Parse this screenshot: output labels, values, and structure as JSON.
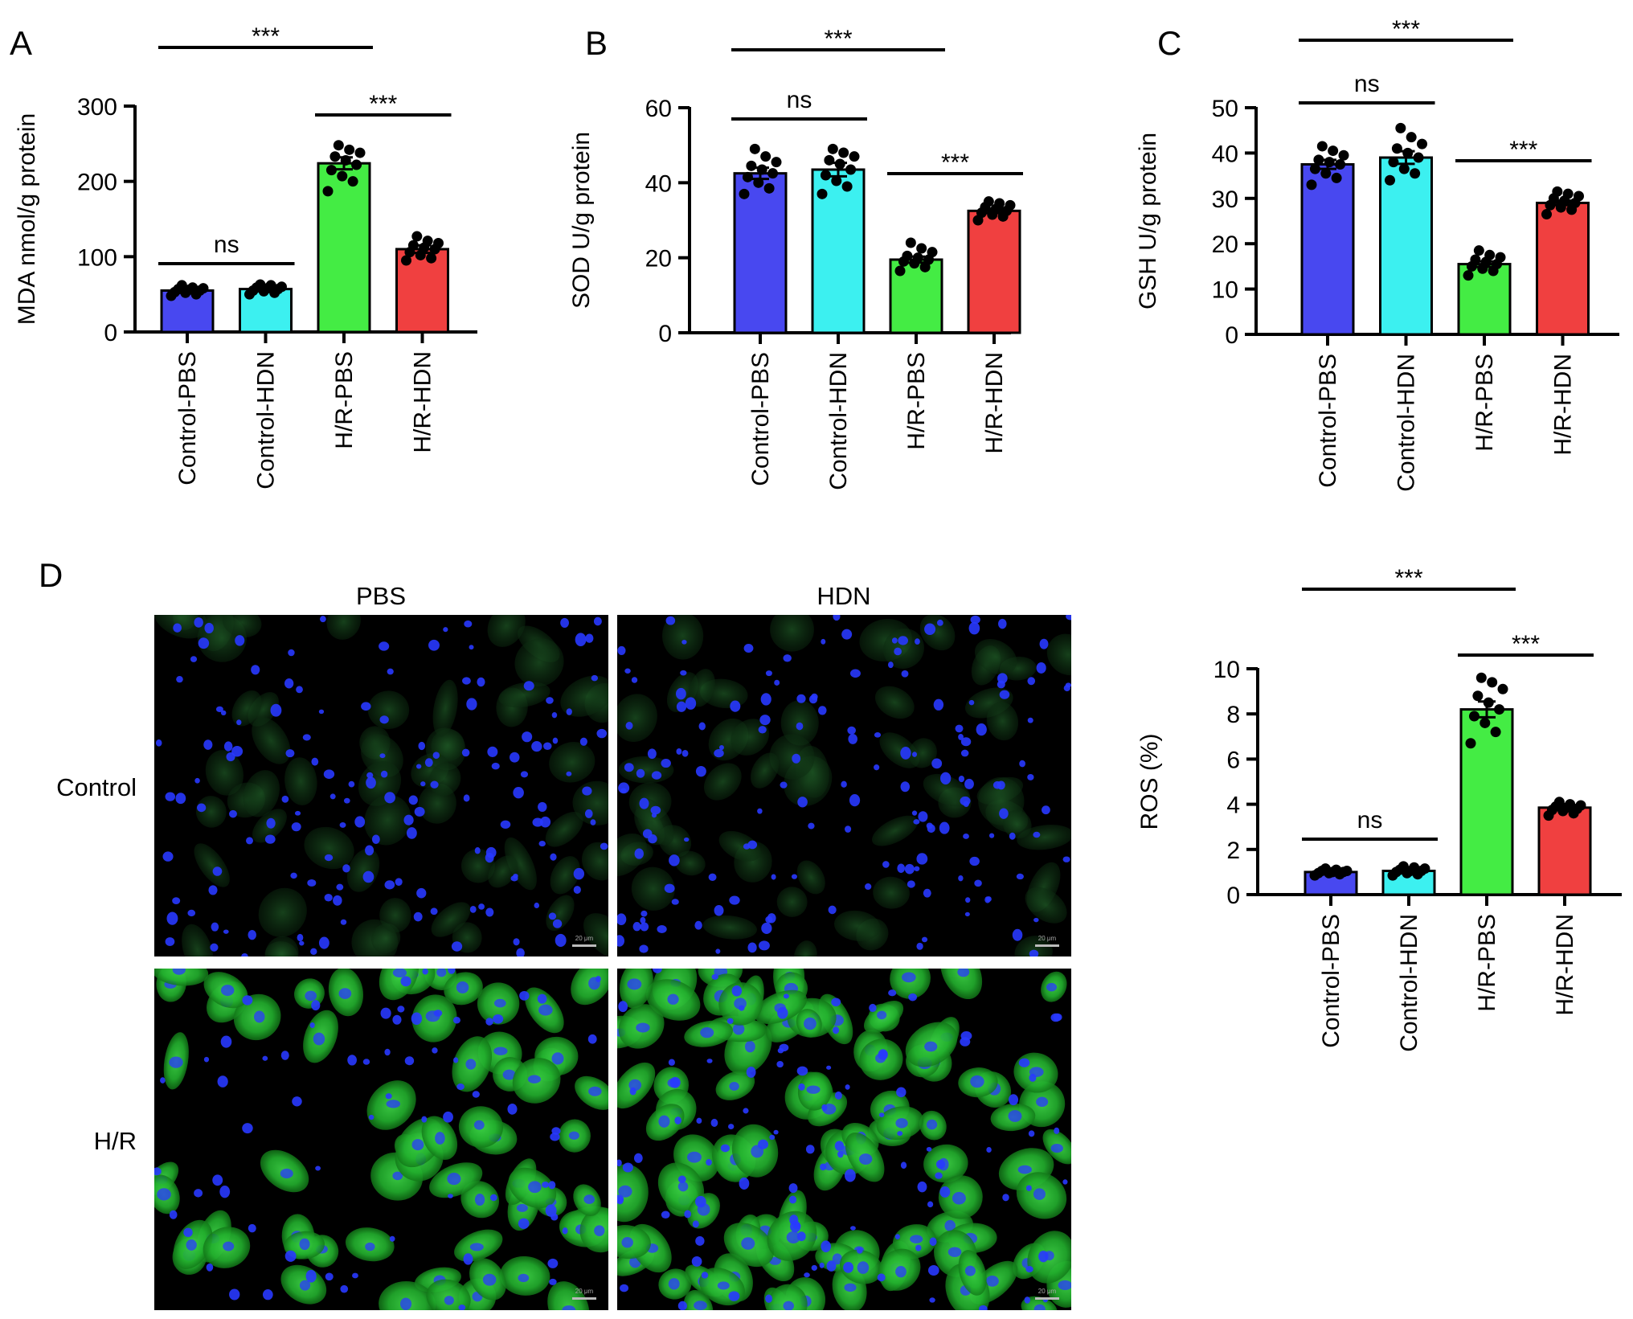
{
  "panels": [
    "A",
    "B",
    "C",
    "D"
  ],
  "colors": {
    "control_pbs": "#4848f0",
    "control_hdn": "#3cf0f0",
    "hr_pbs": "#44ec44",
    "hr_hdn": "#f04040",
    "nuclei": "#2838ff",
    "cell_stain": "#22b02e"
  },
  "micrograph": {
    "col_labels": [
      "PBS",
      "HDN"
    ],
    "row_labels": [
      "Control",
      "H/R"
    ],
    "scale_bar_text": "20 μm"
  },
  "chart_data": [
    {
      "panel": "A",
      "type": "bar",
      "categories": [
        "Control-PBS",
        "Control-HDN",
        "H/R-PBS",
        "H/R-HDN"
      ],
      "values": [
        55,
        57,
        224,
        110
      ],
      "sem": [
        3,
        3,
        8,
        5
      ],
      "points": [
        [
          48,
          50,
          52,
          53,
          55,
          56,
          57,
          58,
          59,
          62
        ],
        [
          50,
          52,
          54,
          55,
          57,
          58,
          59,
          60,
          62,
          63
        ],
        [
          187,
          200,
          207,
          215,
          222,
          228,
          233,
          238,
          242,
          248
        ],
        [
          95,
          98,
          102,
          106,
          110,
          112,
          115,
          118,
          121,
          127
        ]
      ],
      "ylabel": "MDA nmol/g protein",
      "ylim": [
        0,
        300
      ],
      "yticks": [
        0,
        100,
        200,
        300
      ],
      "significance": [
        {
          "from": 0,
          "to": 1,
          "label": "ns"
        },
        {
          "from": 2,
          "to": 3,
          "label": "***"
        },
        {
          "from": 0,
          "to": 2,
          "label": "***"
        }
      ]
    },
    {
      "panel": "B",
      "type": "bar",
      "categories": [
        "Control-PBS",
        "Control-HDN",
        "H/R-PBS",
        "H/R-HDN"
      ],
      "values": [
        42.5,
        43.5,
        19.5,
        32.5
      ],
      "sem": [
        1.5,
        1.8,
        0.8,
        0.6
      ],
      "points": [
        [
          37,
          38.5,
          40,
          41.5,
          42.5,
          43.5,
          44.5,
          45.5,
          47,
          49
        ],
        [
          37,
          39,
          40.5,
          42,
          43.5,
          45,
          46,
          47,
          48,
          49
        ],
        [
          16.5,
          17.5,
          18.5,
          19,
          19.5,
          20,
          20.5,
          21.5,
          22.5,
          24
        ],
        [
          30,
          31,
          31.5,
          32,
          32.5,
          33,
          33.5,
          34,
          34.5,
          35
        ]
      ],
      "ylabel": "SOD U/g protein",
      "ylim": [
        0,
        60
      ],
      "yticks": [
        0,
        20,
        40,
        60
      ],
      "significance": [
        {
          "from": 0,
          "to": 1,
          "label": "ns"
        },
        {
          "from": 2,
          "to": 3,
          "label": "***"
        },
        {
          "from": 0,
          "to": 2,
          "label": "***"
        }
      ]
    },
    {
      "panel": "C",
      "type": "bar",
      "categories": [
        "Control-PBS",
        "Control-HDN",
        "H/R-PBS",
        "H/R-HDN"
      ],
      "values": [
        37.5,
        39,
        15.5,
        29
      ],
      "sem": [
        1,
        1.4,
        0.6,
        0.5
      ],
      "points": [
        [
          33,
          34.5,
          35.5,
          36.5,
          37.5,
          38,
          38.5,
          39.5,
          40.5,
          41.5
        ],
        [
          34,
          35.5,
          36.5,
          38,
          39,
          40,
          41,
          42,
          43.5,
          45.5
        ],
        [
          13,
          14,
          14.5,
          15,
          15.5,
          16,
          16.5,
          17,
          17.5,
          18.5
        ],
        [
          26.5,
          27.5,
          28,
          28.5,
          29,
          29.5,
          30,
          30.5,
          31,
          31.5
        ]
      ],
      "ylabel": "GSH U/g protein",
      "ylim": [
        0,
        50
      ],
      "yticks": [
        0,
        10,
        20,
        30,
        40,
        50
      ],
      "significance": [
        {
          "from": 0,
          "to": 1,
          "label": "ns"
        },
        {
          "from": 2,
          "to": 3,
          "label": "***"
        },
        {
          "from": 0,
          "to": 2,
          "label": "***"
        }
      ]
    },
    {
      "panel": "D",
      "type": "bar",
      "categories": [
        "Control-PBS",
        "Control-HDN",
        "H/R-PBS",
        "H/R-HDN"
      ],
      "values": [
        1.0,
        1.05,
        8.2,
        3.85
      ],
      "sem": [
        0.05,
        0.06,
        0.35,
        0.07
      ],
      "points": [
        [
          0.85,
          0.9,
          0.95,
          0.95,
          1.0,
          1.0,
          1.05,
          1.05,
          1.1,
          1.15
        ],
        [
          0.85,
          0.9,
          0.95,
          1.0,
          1.05,
          1.05,
          1.1,
          1.15,
          1.2,
          1.25
        ],
        [
          6.7,
          7.2,
          7.6,
          7.9,
          8.2,
          8.5,
          8.8,
          9.1,
          9.4,
          9.6
        ],
        [
          3.5,
          3.6,
          3.7,
          3.75,
          3.8,
          3.85,
          3.9,
          3.95,
          4.0,
          4.1
        ]
      ],
      "ylabel": "ROS (%)",
      "ylim": [
        0,
        10
      ],
      "yticks": [
        0,
        2,
        4,
        6,
        8,
        10
      ],
      "significance": [
        {
          "from": 0,
          "to": 1,
          "label": "ns"
        },
        {
          "from": 2,
          "to": 3,
          "label": "***"
        },
        {
          "from": 0,
          "to": 2,
          "label": "***"
        }
      ]
    }
  ]
}
